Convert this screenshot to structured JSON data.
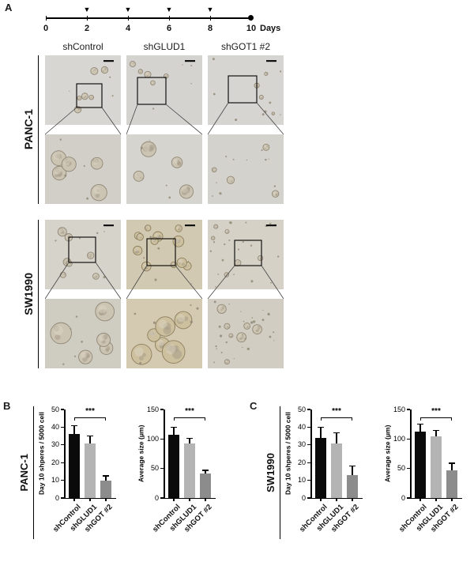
{
  "figure": {
    "panels": {
      "a": "A",
      "b": "B",
      "c": "C"
    },
    "timeline": {
      "ticks": [
        "0",
        "2",
        "4",
        "6",
        "8",
        "10"
      ],
      "unit": "Days"
    },
    "column_headers": [
      "shControl",
      "shGLUD1",
      "shGOT1 #2"
    ],
    "cell_lines": [
      "PANC-1",
      "SW1990"
    ]
  },
  "chart_data": [
    {
      "type": "bar",
      "panel": "B",
      "cell_line": "PANC-1",
      "title": "",
      "ylabel": "Day 10 shperes / 5000 cell",
      "categories": [
        "shControl",
        "shGLUD1",
        "shGOT #2"
      ],
      "values": [
        36,
        31,
        10
      ],
      "errors": [
        5,
        4,
        2.5
      ],
      "ylim": [
        0,
        50
      ],
      "yticks": [
        0,
        10,
        20,
        30,
        40,
        50
      ],
      "significance": "***",
      "sig_between": [
        "shControl",
        "shGOT #2"
      ],
      "bar_colors": [
        "#0a0a0a",
        "#b4b4b4",
        "#8c8c8c"
      ],
      "legend": "none",
      "grid": "off"
    },
    {
      "type": "bar",
      "panel": "B",
      "cell_line": "PANC-1",
      "title": "",
      "ylabel": "Average size (μm)",
      "categories": [
        "shControl",
        "shGLUD1",
        "shGOT #2"
      ],
      "values": [
        107,
        93,
        42
      ],
      "errors": [
        13,
        8,
        5
      ],
      "ylim": [
        0,
        150
      ],
      "yticks": [
        0,
        50,
        100,
        150
      ],
      "significance": "***",
      "sig_between": [
        "shControl",
        "shGOT #2"
      ],
      "bar_colors": [
        "#0a0a0a",
        "#b4b4b4",
        "#8c8c8c"
      ],
      "legend": "none",
      "grid": "off"
    },
    {
      "type": "bar",
      "panel": "C",
      "cell_line": "SW1990",
      "title": "",
      "ylabel": "Day 10 shperes / 5000 cell",
      "categories": [
        "shControl",
        "shGLUD1",
        "shGOT #2"
      ],
      "values": [
        34,
        31,
        13
      ],
      "errors": [
        6,
        6,
        5
      ],
      "ylim": [
        0,
        50
      ],
      "yticks": [
        0,
        10,
        20,
        30,
        40,
        50
      ],
      "significance": "***",
      "sig_between": [
        "shControl",
        "shGOT #2"
      ],
      "bar_colors": [
        "#0a0a0a",
        "#b4b4b4",
        "#8c8c8c"
      ],
      "legend": "none",
      "grid": "off"
    },
    {
      "type": "bar",
      "panel": "C",
      "cell_line": "SW1990",
      "title": "",
      "ylabel": "Average size (μm)",
      "categories": [
        "shControl",
        "shGLUD1",
        "shGOT #2"
      ],
      "values": [
        112,
        105,
        47
      ],
      "errors": [
        13,
        10,
        12
      ],
      "ylim": [
        0,
        150
      ],
      "yticks": [
        0,
        50,
        100,
        150
      ],
      "significance": "***",
      "sig_between": [
        "shControl",
        "shGOT #2"
      ],
      "bar_colors": [
        "#0a0a0a",
        "#b4b4b4",
        "#8c8c8c"
      ],
      "legend": "none",
      "grid": "off"
    }
  ]
}
